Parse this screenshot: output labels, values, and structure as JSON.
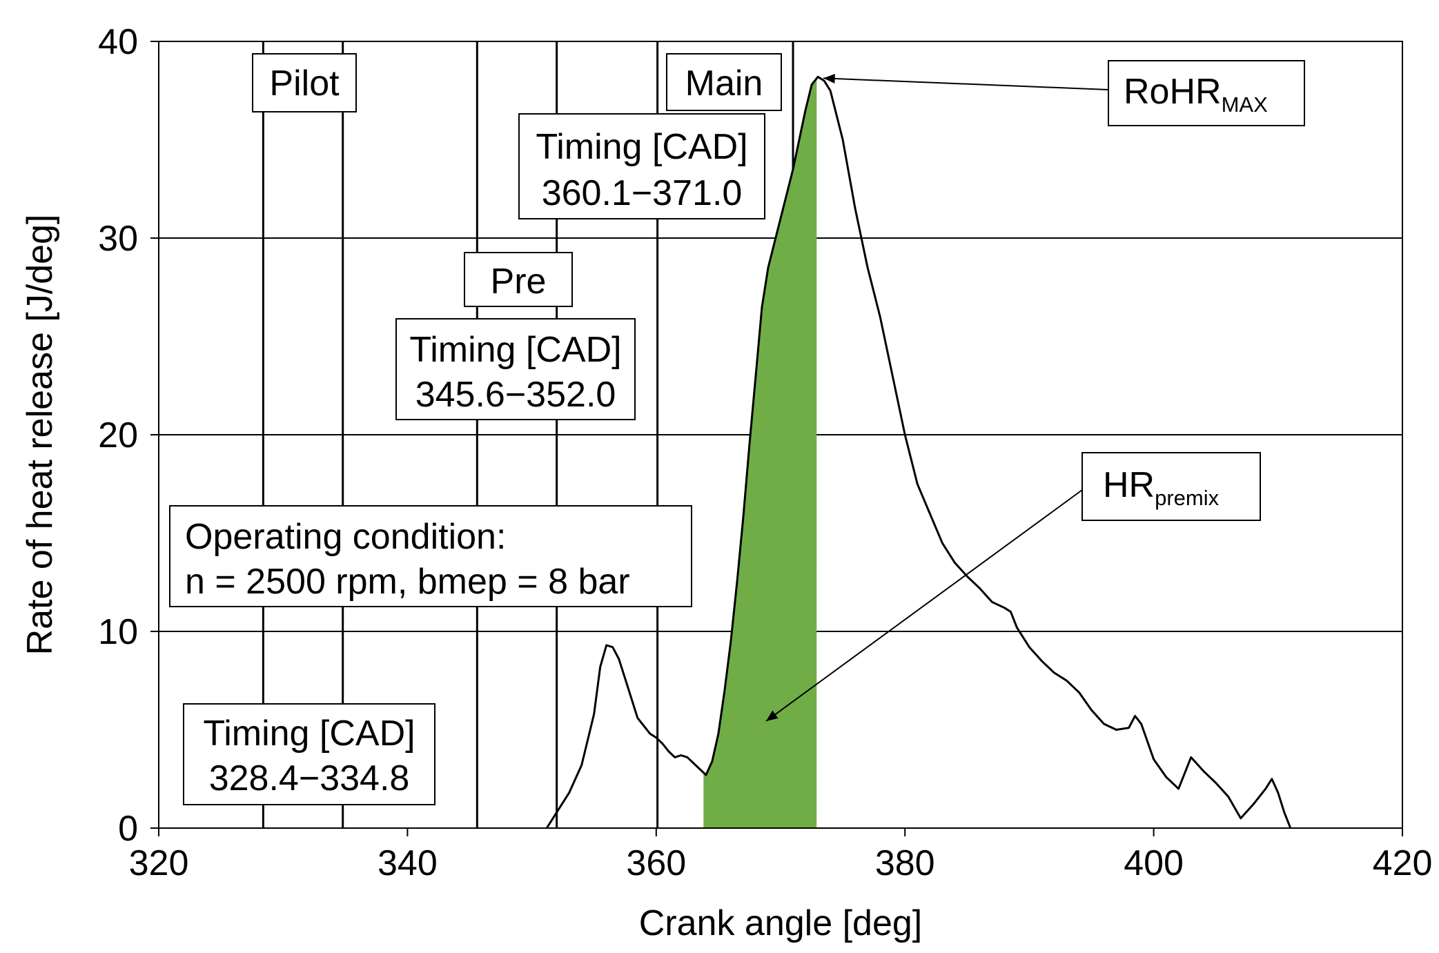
{
  "chart_data": {
    "type": "line",
    "xlabel": "Crank angle [deg]",
    "ylabel": "Rate of heat release [J/deg]",
    "xlim": [
      320,
      420
    ],
    "ylim": [
      0,
      40
    ],
    "xticks": [
      320,
      340,
      360,
      380,
      400,
      420
    ],
    "yticks": [
      0,
      10,
      20,
      30,
      40
    ],
    "x_tick_labels": [
      "320",
      "340",
      "360",
      "380",
      "400",
      "420"
    ],
    "y_tick_labels": [
      "0",
      "10",
      "20",
      "30",
      "40"
    ],
    "grid": "horizontal",
    "injection_lines": [
      328.4,
      334.8,
      345.6,
      352.0,
      360.1,
      371.0
    ],
    "series": [
      {
        "name": "Rate of heat release",
        "color": "#000000",
        "x": [
          351.2,
          352,
          353,
          354,
          355,
          355.5,
          356,
          356.5,
          357,
          357.5,
          358,
          358.5,
          359,
          359.5,
          360,
          360.5,
          361,
          361.5,
          362,
          362.5,
          363,
          363.5,
          364,
          364.5,
          365,
          365.5,
          366,
          366.5,
          367,
          367.5,
          368,
          368.5,
          369,
          370,
          371,
          372,
          372.5,
          373,
          373.5,
          374,
          375,
          376,
          377,
          378,
          379,
          380,
          381,
          382,
          383,
          384,
          385,
          386,
          387,
          388,
          388.5,
          389,
          390,
          391,
          392,
          393,
          394,
          395,
          396,
          397,
          398,
          398.5,
          399,
          400,
          401,
          402,
          403,
          404,
          405,
          406,
          407,
          408,
          409,
          409.5,
          410,
          410.5,
          411
        ],
        "values": [
          0,
          0.8,
          1.8,
          3.2,
          5.8,
          8.2,
          9.3,
          9.2,
          8.6,
          7.6,
          6.6,
          5.6,
          5.2,
          4.8,
          4.6,
          4.3,
          3.9,
          3.6,
          3.7,
          3.6,
          3.3,
          3.0,
          2.7,
          3.4,
          4.8,
          7.0,
          9.5,
          12.5,
          15.8,
          19.5,
          23.0,
          26.5,
          28.5,
          31.0,
          33.5,
          36.5,
          37.8,
          38.2,
          38.0,
          37.5,
          35.0,
          31.5,
          28.5,
          26.0,
          23.0,
          20.0,
          17.5,
          16.0,
          14.5,
          13.5,
          12.8,
          12.2,
          11.5,
          11.2,
          11.0,
          10.2,
          9.2,
          8.5,
          7.9,
          7.5,
          6.9,
          6.0,
          5.3,
          5.0,
          5.1,
          5.7,
          5.3,
          3.5,
          2.6,
          2.0,
          3.6,
          2.9,
          2.3,
          1.6,
          0.5,
          1.2,
          2.0,
          2.5,
          1.8,
          0.8,
          0
        ]
      }
    ],
    "shaded_region": {
      "label": "HR premix",
      "color": "#70ad47",
      "x_start": 363.8,
      "x_end": 372.9
    },
    "annotations": {
      "pilot_label": "Pilot",
      "pre_label": "Pre",
      "main_label": "Main",
      "main_timing_title": "Timing [CAD]",
      "main_timing_range": "360.1−371.0",
      "pre_timing_title": "Timing [CAD]",
      "pre_timing_range": "345.6−352.0",
      "pilot_timing_title": "Timing [CAD]",
      "pilot_timing_range": "328.4−334.8",
      "operating_line1": "Operating condition:",
      "operating_line2": "n = 2500 rpm, bmep = 8 bar",
      "rohr_main": "RoHR",
      "rohr_sub": "MAX",
      "hr_main": "HR",
      "hr_sub": "premix"
    }
  }
}
